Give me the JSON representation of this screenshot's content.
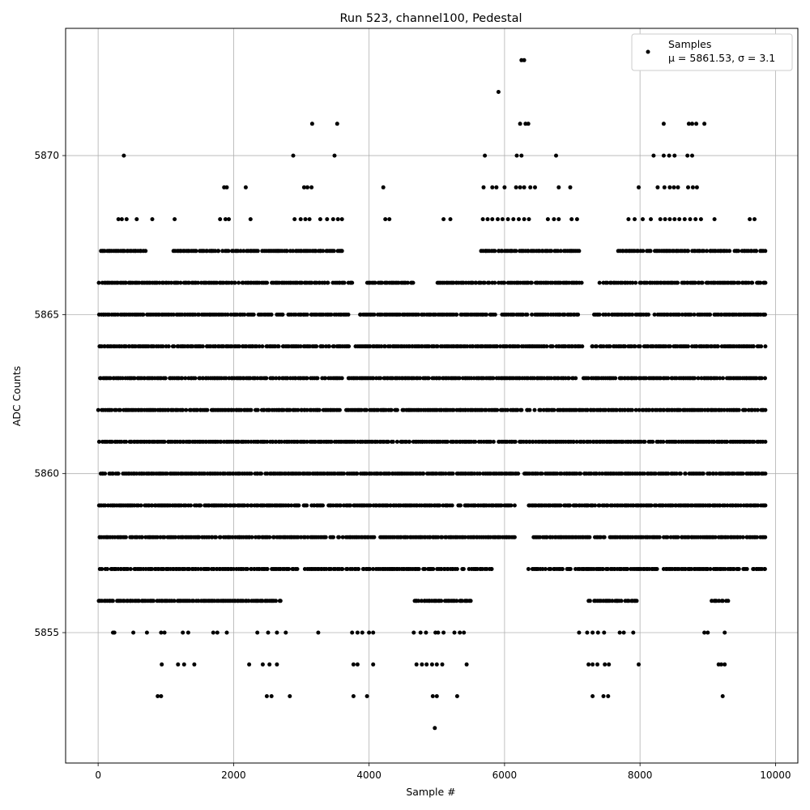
{
  "chart_data": {
    "type": "scatter",
    "title": "Run 523, channel100, Pedestal",
    "xlabel": "Sample #",
    "ylabel": "ADC Counts",
    "xlim": [
      -480,
      10330
    ],
    "ylim": [
      5850.9,
      5874.0
    ],
    "xticks": [
      0,
      2000,
      4000,
      6000,
      8000,
      10000
    ],
    "yticks": [
      5855,
      5860,
      5865,
      5870
    ],
    "grid": true,
    "marker_color": "#000000",
    "legend": {
      "placement": "top-right",
      "entries": [
        {
          "name": "Samples",
          "stat": "μ = 5861.53, σ = 3.1"
        }
      ]
    },
    "series": [
      {
        "name": "Samples",
        "level_ranges": [
          {
            "y": 5864,
            "ranges": [
              [
                0,
                3700
              ],
              [
                3800,
                7150
              ],
              [
                7250,
                9850
              ]
            ]
          },
          {
            "y": 5863,
            "ranges": [
              [
                10,
                3600
              ],
              [
                3650,
                7050
              ],
              [
                7150,
                9850
              ]
            ]
          },
          {
            "y": 5862,
            "ranges": [
              [
                0,
                9850
              ]
            ]
          },
          {
            "y": 5861,
            "ranges": [
              [
                10,
                7020
              ],
              [
                7050,
                9850
              ]
            ]
          },
          {
            "y": 5860,
            "ranges": [
              [
                0,
                6200
              ],
              [
                6270,
                9850
              ]
            ]
          },
          {
            "y": 5859,
            "ranges": [
              [
                0,
                3080
              ],
              [
                3140,
                6150
              ],
              [
                6340,
                9850
              ]
            ]
          },
          {
            "y": 5858,
            "ranges": [
              [
                0,
                3500
              ],
              [
                3530,
                6150
              ],
              [
                6410,
                9850
              ]
            ]
          },
          {
            "y": 5865,
            "ranges": [
              [
                10,
                3700
              ],
              [
                3850,
                5900
              ],
              [
                5950,
                7100
              ],
              [
                7300,
                9850
              ]
            ]
          },
          {
            "y": 5866,
            "ranges": [
              [
                0,
                2500
              ],
              [
                2550,
                3750
              ],
              [
                3950,
                4650
              ],
              [
                5000,
                7150
              ],
              [
                7400,
                9850
              ]
            ]
          },
          {
            "y": 5857,
            "ranges": [
              [
                0,
                2950
              ],
              [
                3050,
                5830
              ],
              [
                6350,
                8250
              ],
              [
                8350,
                9850
              ]
            ]
          },
          {
            "y": 5867,
            "ranges": [
              [
                0,
                700
              ],
              [
                1100,
                3600
              ],
              [
                5650,
                7100
              ],
              [
                7650,
                9850
              ]
            ]
          },
          {
            "y": 5856,
            "ranges": [
              [
                0,
                2700
              ],
              [
                4650,
                5500
              ],
              [
                7230,
                7950
              ],
              [
                9050,
                9300
              ]
            ]
          }
        ],
        "points": [
          {
            "x": 220,
            "y": 5855
          },
          {
            "x": 240,
            "y": 5855
          },
          {
            "x": 520,
            "y": 5855
          },
          {
            "x": 720,
            "y": 5855
          },
          {
            "x": 930,
            "y": 5855
          },
          {
            "x": 980,
            "y": 5855
          },
          {
            "x": 1250,
            "y": 5855
          },
          {
            "x": 1330,
            "y": 5855
          },
          {
            "x": 1700,
            "y": 5855
          },
          {
            "x": 1760,
            "y": 5855
          },
          {
            "x": 1900,
            "y": 5855
          },
          {
            "x": 2350,
            "y": 5855
          },
          {
            "x": 2510,
            "y": 5855
          },
          {
            "x": 2640,
            "y": 5855
          },
          {
            "x": 2770,
            "y": 5855
          },
          {
            "x": 3250,
            "y": 5855
          },
          {
            "x": 3750,
            "y": 5855
          },
          {
            "x": 3830,
            "y": 5855
          },
          {
            "x": 3900,
            "y": 5855
          },
          {
            "x": 4000,
            "y": 5855
          },
          {
            "x": 4060,
            "y": 5855
          },
          {
            "x": 4660,
            "y": 5855
          },
          {
            "x": 4760,
            "y": 5855
          },
          {
            "x": 4840,
            "y": 5855
          },
          {
            "x": 4980,
            "y": 5855
          },
          {
            "x": 5020,
            "y": 5855
          },
          {
            "x": 5100,
            "y": 5855
          },
          {
            "x": 5260,
            "y": 5855
          },
          {
            "x": 5340,
            "y": 5855
          },
          {
            "x": 5400,
            "y": 5855
          },
          {
            "x": 7100,
            "y": 5855
          },
          {
            "x": 7220,
            "y": 5855
          },
          {
            "x": 7300,
            "y": 5855
          },
          {
            "x": 7380,
            "y": 5855
          },
          {
            "x": 7470,
            "y": 5855
          },
          {
            "x": 7700,
            "y": 5855
          },
          {
            "x": 7760,
            "y": 5855
          },
          {
            "x": 7900,
            "y": 5855
          },
          {
            "x": 8950,
            "y": 5855
          },
          {
            "x": 9000,
            "y": 5855
          },
          {
            "x": 9250,
            "y": 5855
          },
          {
            "x": 940,
            "y": 5854
          },
          {
            "x": 1180,
            "y": 5854
          },
          {
            "x": 1270,
            "y": 5854
          },
          {
            "x": 1420,
            "y": 5854
          },
          {
            "x": 2230,
            "y": 5854
          },
          {
            "x": 2430,
            "y": 5854
          },
          {
            "x": 2530,
            "y": 5854
          },
          {
            "x": 2640,
            "y": 5854
          },
          {
            "x": 3770,
            "y": 5854
          },
          {
            "x": 3830,
            "y": 5854
          },
          {
            "x": 4060,
            "y": 5854
          },
          {
            "x": 4700,
            "y": 5854
          },
          {
            "x": 4780,
            "y": 5854
          },
          {
            "x": 4850,
            "y": 5854
          },
          {
            "x": 4930,
            "y": 5854
          },
          {
            "x": 5000,
            "y": 5854
          },
          {
            "x": 5080,
            "y": 5854
          },
          {
            "x": 5440,
            "y": 5854
          },
          {
            "x": 7240,
            "y": 5854
          },
          {
            "x": 7300,
            "y": 5854
          },
          {
            "x": 7370,
            "y": 5854
          },
          {
            "x": 7480,
            "y": 5854
          },
          {
            "x": 7540,
            "y": 5854
          },
          {
            "x": 7980,
            "y": 5854
          },
          {
            "x": 9160,
            "y": 5854
          },
          {
            "x": 9200,
            "y": 5854
          },
          {
            "x": 9250,
            "y": 5854
          },
          {
            "x": 880,
            "y": 5853
          },
          {
            "x": 930,
            "y": 5853
          },
          {
            "x": 2490,
            "y": 5853
          },
          {
            "x": 2560,
            "y": 5853
          },
          {
            "x": 2830,
            "y": 5853
          },
          {
            "x": 3770,
            "y": 5853
          },
          {
            "x": 3970,
            "y": 5853
          },
          {
            "x": 4940,
            "y": 5853
          },
          {
            "x": 5000,
            "y": 5853
          },
          {
            "x": 5300,
            "y": 5853
          },
          {
            "x": 7300,
            "y": 5853
          },
          {
            "x": 7460,
            "y": 5853
          },
          {
            "x": 7530,
            "y": 5853
          },
          {
            "x": 9220,
            "y": 5853
          },
          {
            "x": 4970,
            "y": 5852
          },
          {
            "x": 300,
            "y": 5868
          },
          {
            "x": 350,
            "y": 5868
          },
          {
            "x": 420,
            "y": 5868
          },
          {
            "x": 570,
            "y": 5868
          },
          {
            "x": 800,
            "y": 5868
          },
          {
            "x": 1130,
            "y": 5868
          },
          {
            "x": 1800,
            "y": 5868
          },
          {
            "x": 1880,
            "y": 5868
          },
          {
            "x": 1930,
            "y": 5868
          },
          {
            "x": 2250,
            "y": 5868
          },
          {
            "x": 2900,
            "y": 5868
          },
          {
            "x": 2990,
            "y": 5868
          },
          {
            "x": 3060,
            "y": 5868
          },
          {
            "x": 3120,
            "y": 5868
          },
          {
            "x": 3280,
            "y": 5868
          },
          {
            "x": 3380,
            "y": 5868
          },
          {
            "x": 3470,
            "y": 5868
          },
          {
            "x": 3540,
            "y": 5868
          },
          {
            "x": 3600,
            "y": 5868
          },
          {
            "x": 4240,
            "y": 5868
          },
          {
            "x": 4300,
            "y": 5868
          },
          {
            "x": 5100,
            "y": 5868
          },
          {
            "x": 5200,
            "y": 5868
          },
          {
            "x": 5680,
            "y": 5868
          },
          {
            "x": 5750,
            "y": 5868
          },
          {
            "x": 5820,
            "y": 5868
          },
          {
            "x": 5900,
            "y": 5868
          },
          {
            "x": 5970,
            "y": 5868
          },
          {
            "x": 6050,
            "y": 5868
          },
          {
            "x": 6130,
            "y": 5868
          },
          {
            "x": 6210,
            "y": 5868
          },
          {
            "x": 6290,
            "y": 5868
          },
          {
            "x": 6360,
            "y": 5868
          },
          {
            "x": 6640,
            "y": 5868
          },
          {
            "x": 6730,
            "y": 5868
          },
          {
            "x": 6800,
            "y": 5868
          },
          {
            "x": 6990,
            "y": 5868
          },
          {
            "x": 7070,
            "y": 5868
          },
          {
            "x": 7830,
            "y": 5868
          },
          {
            "x": 7920,
            "y": 5868
          },
          {
            "x": 8040,
            "y": 5868
          },
          {
            "x": 8160,
            "y": 5868
          },
          {
            "x": 8300,
            "y": 5868
          },
          {
            "x": 8370,
            "y": 5868
          },
          {
            "x": 8440,
            "y": 5868
          },
          {
            "x": 8510,
            "y": 5868
          },
          {
            "x": 8580,
            "y": 5868
          },
          {
            "x": 8660,
            "y": 5868
          },
          {
            "x": 8740,
            "y": 5868
          },
          {
            "x": 8820,
            "y": 5868
          },
          {
            "x": 8900,
            "y": 5868
          },
          {
            "x": 9100,
            "y": 5868
          },
          {
            "x": 9620,
            "y": 5868
          },
          {
            "x": 9690,
            "y": 5868
          },
          {
            "x": 1860,
            "y": 5869
          },
          {
            "x": 1900,
            "y": 5869
          },
          {
            "x": 2180,
            "y": 5869
          },
          {
            "x": 3040,
            "y": 5869
          },
          {
            "x": 3090,
            "y": 5869
          },
          {
            "x": 3150,
            "y": 5869
          },
          {
            "x": 4210,
            "y": 5869
          },
          {
            "x": 5690,
            "y": 5869
          },
          {
            "x": 5820,
            "y": 5869
          },
          {
            "x": 5880,
            "y": 5869
          },
          {
            "x": 6000,
            "y": 5869
          },
          {
            "x": 6170,
            "y": 5869
          },
          {
            "x": 6230,
            "y": 5869
          },
          {
            "x": 6290,
            "y": 5869
          },
          {
            "x": 6380,
            "y": 5869
          },
          {
            "x": 6450,
            "y": 5869
          },
          {
            "x": 6800,
            "y": 5869
          },
          {
            "x": 6970,
            "y": 5869
          },
          {
            "x": 7980,
            "y": 5869
          },
          {
            "x": 8260,
            "y": 5869
          },
          {
            "x": 8360,
            "y": 5869
          },
          {
            "x": 8440,
            "y": 5869
          },
          {
            "x": 8500,
            "y": 5869
          },
          {
            "x": 8560,
            "y": 5869
          },
          {
            "x": 8710,
            "y": 5869
          },
          {
            "x": 8780,
            "y": 5869
          },
          {
            "x": 8840,
            "y": 5869
          },
          {
            "x": 380,
            "y": 5870
          },
          {
            "x": 2880,
            "y": 5870
          },
          {
            "x": 3490,
            "y": 5870
          },
          {
            "x": 5710,
            "y": 5870
          },
          {
            "x": 6180,
            "y": 5870
          },
          {
            "x": 6250,
            "y": 5870
          },
          {
            "x": 6760,
            "y": 5870
          },
          {
            "x": 8200,
            "y": 5870
          },
          {
            "x": 8350,
            "y": 5870
          },
          {
            "x": 8430,
            "y": 5870
          },
          {
            "x": 8510,
            "y": 5870
          },
          {
            "x": 8700,
            "y": 5870
          },
          {
            "x": 8770,
            "y": 5870
          },
          {
            "x": 3160,
            "y": 5871
          },
          {
            "x": 3530,
            "y": 5871
          },
          {
            "x": 6230,
            "y": 5871
          },
          {
            "x": 6310,
            "y": 5871
          },
          {
            "x": 6350,
            "y": 5871
          },
          {
            "x": 8350,
            "y": 5871
          },
          {
            "x": 8720,
            "y": 5871
          },
          {
            "x": 8770,
            "y": 5871
          },
          {
            "x": 8830,
            "y": 5871
          },
          {
            "x": 8950,
            "y": 5871
          },
          {
            "x": 5910,
            "y": 5872
          },
          {
            "x": 6250,
            "y": 5873
          },
          {
            "x": 6290,
            "y": 5873
          }
        ]
      }
    ]
  }
}
